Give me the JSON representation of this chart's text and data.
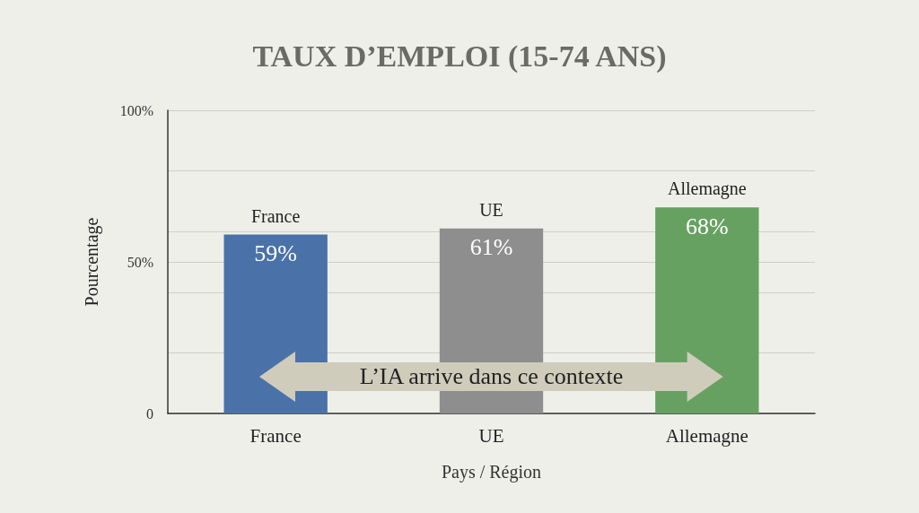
{
  "chart_data": {
    "type": "bar",
    "title": "TAUX D’EMPLOI (15-74 ANS)",
    "xlabel": "Pays / Région",
    "ylabel": "Pourcentage",
    "categories": [
      "France",
      "UE",
      "Allemagne"
    ],
    "values": [
      59,
      61,
      68
    ],
    "colors": [
      "#4a72a8",
      "#8e8e8e",
      "#67a162"
    ],
    "value_labels": [
      "59%",
      "61%",
      "68%"
    ],
    "ylim": [
      0,
      100
    ],
    "yticks": [
      {
        "value": 0,
        "label": "0"
      },
      {
        "value": 20,
        "label": null
      },
      {
        "value": 40,
        "label": null
      },
      {
        "value": 50,
        "label": "50%"
      },
      {
        "value": 60,
        "label": null
      },
      {
        "value": 80,
        "label": null
      },
      {
        "value": 100,
        "label": "100%"
      }
    ],
    "grid": true,
    "annotations": [
      "L’IA arrive dans ce contexte"
    ]
  }
}
